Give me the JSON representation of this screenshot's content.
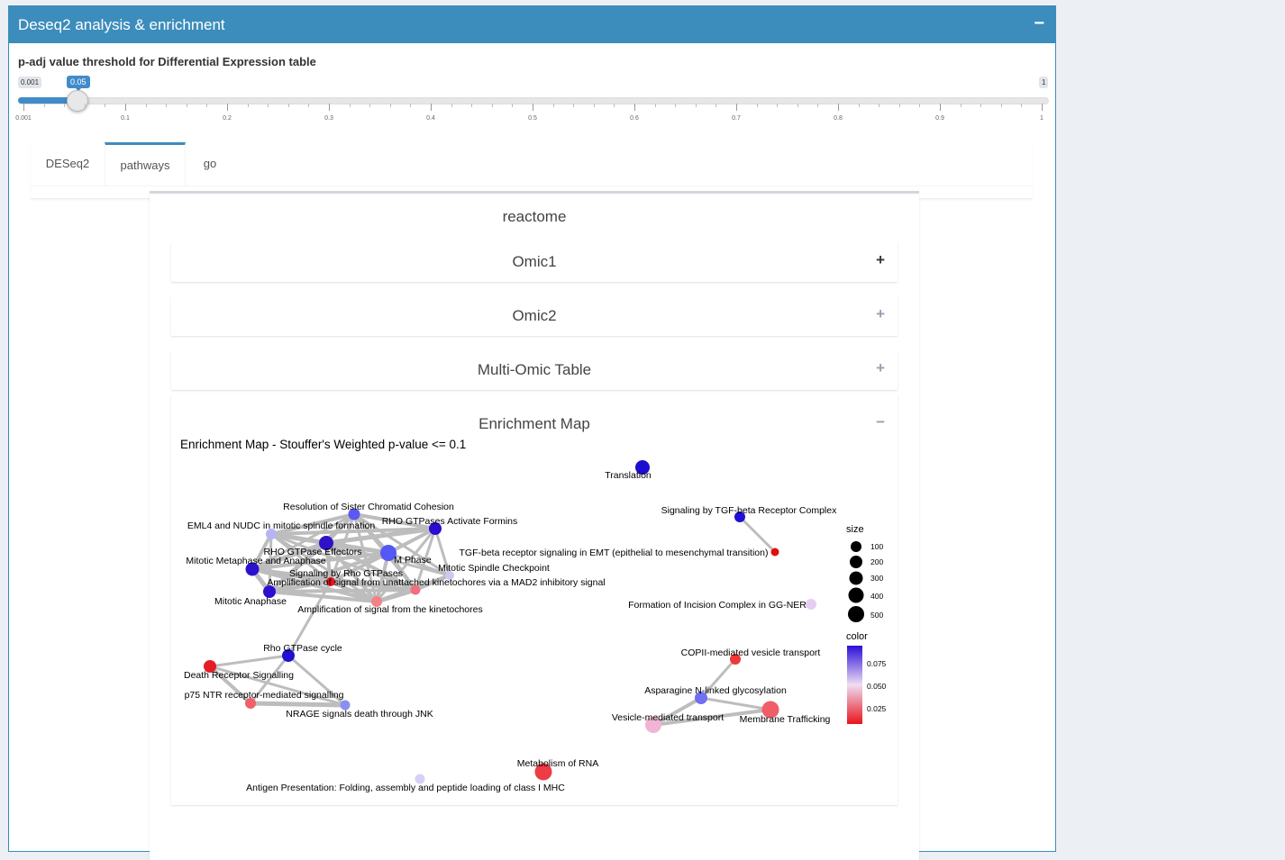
{
  "header": {
    "title": "Deseq2 analysis & enrichment",
    "collapse_icon": "minus-icon"
  },
  "slider": {
    "label": "p-adj value threshold for Differential Expression table",
    "min": "0.001",
    "max": "1",
    "value": "0.05",
    "value_fraction": 0.05,
    "tick_labels": [
      "0.001",
      "0.1",
      "0.2",
      "0.3",
      "0.4",
      "0.5",
      "0.6",
      "0.7",
      "0.8",
      "0.9",
      "1"
    ]
  },
  "tabs": [
    {
      "label": "DESeq2",
      "active": false
    },
    {
      "label": "pathways",
      "active": true
    },
    {
      "label": "go",
      "active": false
    }
  ],
  "panel": {
    "title": "reactome",
    "sections": [
      {
        "label": "Omic1",
        "icon": "plus-icon",
        "toggle": "+"
      },
      {
        "label": "Omic2",
        "icon": "plus-icon",
        "toggle": "+"
      },
      {
        "label": "Multi-Omic Table",
        "icon": "plus-icon",
        "toggle": "+"
      },
      {
        "label": "Enrichment Map",
        "icon": "minus-icon",
        "toggle": "−"
      }
    ]
  },
  "enrichment_map": {
    "title": "Enrichment Map - Stouffer's Weighted p-value <= 0.1",
    "nodes": [
      {
        "label": "Translation"
      },
      {
        "label": "Signaling by TGF-beta Receptor Complex"
      },
      {
        "label": "TGF-beta receptor signaling in EMT (epithelial to mesenchymal transition)"
      },
      {
        "label": "Formation of Incision Complex in GG-NER"
      },
      {
        "label": "Resolution of Sister Chromatid Cohesion"
      },
      {
        "label": "EML4 and NUDC in mitotic spindle formation"
      },
      {
        "label": "RHO GTPases Activate Formins"
      },
      {
        "label": "RHO GTPase Effectors"
      },
      {
        "label": "M Phase"
      },
      {
        "label": "Mitotic Metaphase and Anaphase"
      },
      {
        "label": "Mitotic Spindle Checkpoint"
      },
      {
        "label": "Signaling by Rho GTPases"
      },
      {
        "label": "Amplification  of signal from unattached  kinetochores via a MAD2  inhibitory signal"
      },
      {
        "label": "Mitotic Anaphase"
      },
      {
        "label": "Amplification of signal from the kinetochores"
      },
      {
        "label": "Rho GTPase cycle"
      },
      {
        "label": "Death Receptor Signalling"
      },
      {
        "label": "p75 NTR receptor-mediated signalling"
      },
      {
        "label": "NRAGE signals death through JNK"
      },
      {
        "label": "COPII-mediated vesicle transport"
      },
      {
        "label": "Asparagine N-linked glycosylation"
      },
      {
        "label": "Vesicle-mediated transport"
      },
      {
        "label": "Membrane Trafficking"
      },
      {
        "label": "Metabolism of RNA"
      },
      {
        "label": "Antigen Presentation: Folding, assembly and peptide loading of class I MHC"
      }
    ],
    "legend": {
      "size_title": "size",
      "sizes": [
        "100",
        "200",
        "300",
        "400",
        "500"
      ],
      "color_title": "color",
      "color_ticks": [
        "0.075",
        "0.050",
        "0.025"
      ],
      "color_high": "#2b0fd8",
      "color_mid": "#eeddf2",
      "color_low": "#e8141c"
    }
  }
}
